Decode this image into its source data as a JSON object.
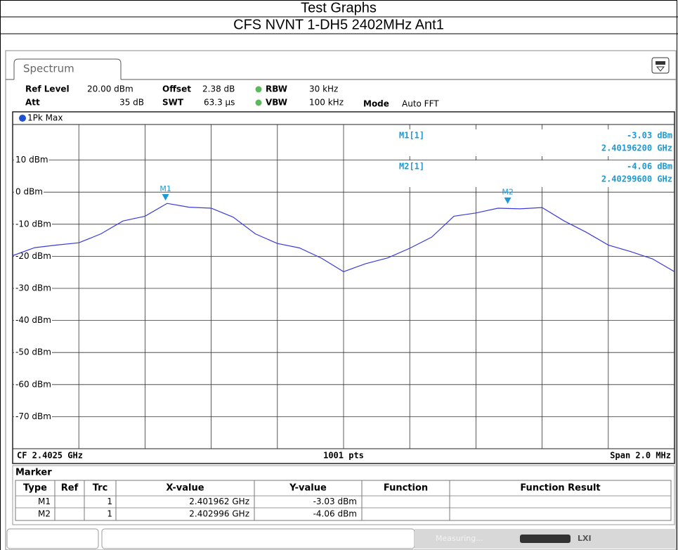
{
  "header": {
    "title": "Test Graphs",
    "subtitle": "CFS NVNT 1-DH5 2402MHz Ant1"
  },
  "tab": "Spectrum",
  "settings": {
    "ref_level": {
      "label": "Ref Level",
      "value": "20.00 dBm"
    },
    "offset": {
      "label": "Offset",
      "value": "2.38 dB"
    },
    "rbw": {
      "label": "RBW",
      "value": "30 kHz"
    },
    "att": {
      "label": "Att",
      "value": "35 dB"
    },
    "swt": {
      "label": "SWT",
      "value": "63.3 µs"
    },
    "vbw": {
      "label": "VBW",
      "value": "100 kHz"
    },
    "mode": {
      "label": "Mode",
      "value": "Auto FFT"
    }
  },
  "chart_data": {
    "type": "line",
    "ylim": [
      -80,
      20
    ],
    "yticks": [
      {
        "value": 10,
        "label": "10 dBm"
      },
      {
        "value": 0,
        "label": "0 dBm"
      },
      {
        "value": -10,
        "label": "-10 dBm"
      },
      {
        "value": -20,
        "label": "-20 dBm"
      },
      {
        "value": -30,
        "label": "-30 dBm"
      },
      {
        "value": -40,
        "label": "-40 dBm"
      },
      {
        "value": -50,
        "label": "-50 dBm"
      },
      {
        "value": -60,
        "label": "-60 dBm"
      },
      {
        "value": -70,
        "label": "-70 dBm"
      }
    ],
    "xlim": [
      2.4015,
      2.4035
    ],
    "series": [
      {
        "name": "1Pk Max",
        "color": "#3b3bdc",
        "values": [
          -19.8,
          -17.3,
          -16.5,
          -15.8,
          -13,
          -9,
          -7.5,
          -3.5,
          -4.7,
          -5,
          -7.8,
          -13,
          -16,
          -17.4,
          -20.6,
          -24.8,
          -22.3,
          -20.5,
          -17.5,
          -14,
          -7.5,
          -6.5,
          -5,
          -5.2,
          -4.8,
          -9,
          -12.5,
          -16.5,
          -18.5,
          -20.8,
          -24.8
        ]
      }
    ],
    "markers": [
      {
        "label": "M1",
        "x": 2.401962,
        "y": -3.03
      },
      {
        "label": "M2",
        "x": 2.402996,
        "y": -4.06
      }
    ],
    "readout": [
      {
        "name": "M1[1]",
        "level": "-3.03 dBm",
        "frequency": "2.40196200 GHz"
      },
      {
        "name": "M2[1]",
        "level": "-4.06 dBm",
        "frequency": "2.40299600 GHz"
      }
    ],
    "footer": {
      "center": "CF 2.4025 GHz",
      "points": "1001 pts",
      "span": "Span 2.0 MHz"
    }
  },
  "marker_table": {
    "title": "Marker",
    "columns": [
      "Type",
      "Ref",
      "Trc",
      "X-value",
      "Y-value",
      "Function",
      "Function Result"
    ],
    "rows": [
      {
        "type": "M1",
        "trc": "1",
        "x_value": "2.401962 GHz",
        "y_value": "-3.03 dBm"
      },
      {
        "type": "M2",
        "trc": "1",
        "x_value": "2.402996 GHz",
        "y_value": "-4.06 dBm"
      }
    ]
  },
  "status": "Measuring..."
}
